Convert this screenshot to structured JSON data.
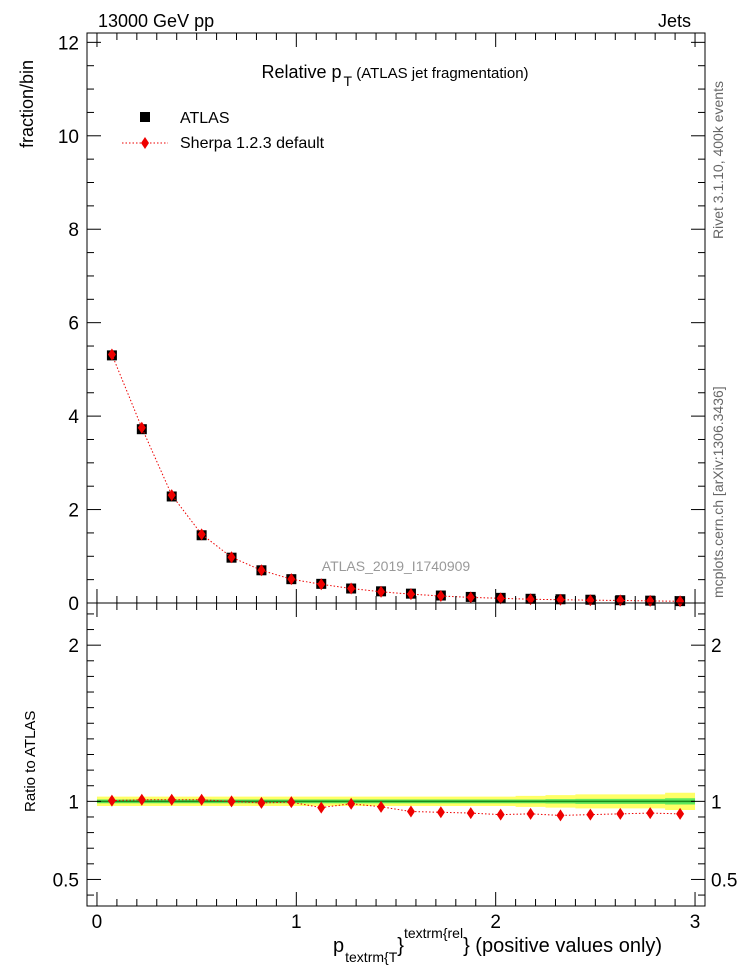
{
  "header": {
    "left": "13000 GeV pp",
    "right": "Jets"
  },
  "side_labels": {
    "rivet": "Rivet 3.1.10,  400k events",
    "mcplots": "mcplots.cern.ch [arXiv:1306.3436]"
  },
  "chart_data": [
    {
      "panel": "main",
      "type": "scatter",
      "title_main": "Relative p",
      "title_sub": "T",
      "title_rest": " (ATLAS jet fragmentation)",
      "ylabel": "fraction/bin",
      "watermark": "ATLAS_2019_I1740909",
      "xlim": [
        -0.05,
        3.05
      ],
      "ylim": [
        0,
        12.2
      ],
      "yticks": [
        0,
        2,
        4,
        6,
        8,
        10,
        12
      ],
      "ytick_labels": [
        "0",
        "2",
        "4",
        "6",
        "8",
        "10",
        "12"
      ],
      "legend": {
        "position": "top-left"
      },
      "series": [
        {
          "name": "ATLAS",
          "color": "#000000",
          "marker": "square",
          "x": [
            0.075,
            0.225,
            0.375,
            0.525,
            0.675,
            0.825,
            0.975,
            1.125,
            1.275,
            1.425,
            1.575,
            1.725,
            1.875,
            2.025,
            2.175,
            2.325,
            2.475,
            2.625,
            2.775,
            2.925
          ],
          "y": [
            5.3,
            3.72,
            2.28,
            1.45,
            0.97,
            0.7,
            0.51,
            0.41,
            0.31,
            0.25,
            0.2,
            0.16,
            0.13,
            0.11,
            0.09,
            0.08,
            0.07,
            0.06,
            0.05,
            0.04
          ]
        },
        {
          "name": "Sherpa 1.2.3 default",
          "color": "#ee0000",
          "marker": "diamond",
          "line": "dotted",
          "x": [
            0.075,
            0.225,
            0.375,
            0.525,
            0.675,
            0.825,
            0.975,
            1.125,
            1.275,
            1.425,
            1.575,
            1.725,
            1.875,
            2.025,
            2.175,
            2.325,
            2.475,
            2.625,
            2.775,
            2.925
          ],
          "y": [
            5.32,
            3.75,
            2.31,
            1.47,
            0.98,
            0.7,
            0.51,
            0.4,
            0.31,
            0.24,
            0.19,
            0.15,
            0.12,
            0.1,
            0.08,
            0.07,
            0.06,
            0.055,
            0.045,
            0.037
          ]
        }
      ]
    },
    {
      "panel": "ratio",
      "type": "scatter",
      "ylabel": "Ratio to ATLAS",
      "xlabel_main": "p",
      "xlabel_sub": "textrm{T",
      "xlabel_brace": "}",
      "xlabel_sup": "textrm{rel",
      "xlabel_rest": "} (positive values only)",
      "xlim": [
        -0.05,
        3.05
      ],
      "xticks": [
        0,
        1,
        2,
        3
      ],
      "xtick_labels": [
        "0",
        "1",
        "2",
        "3"
      ],
      "ylim": [
        0.33,
        2.27
      ],
      "yticks": [
        0.5,
        1,
        2
      ],
      "ytick_labels": [
        "0.5",
        "1",
        "2"
      ],
      "band": {
        "x": [
          0.0,
          0.15,
          0.3,
          0.45,
          0.6,
          0.75,
          0.9,
          1.05,
          1.2,
          1.35,
          1.5,
          1.65,
          1.8,
          1.95,
          2.1,
          2.25,
          2.4,
          2.55,
          2.7,
          2.85,
          3.0
        ],
        "inner_halfwidth": [
          0.012,
          0.012,
          0.012,
          0.012,
          0.012,
          0.012,
          0.012,
          0.012,
          0.012,
          0.012,
          0.012,
          0.012,
          0.012,
          0.012,
          0.012,
          0.014,
          0.016,
          0.016,
          0.016,
          0.02,
          0.02
        ],
        "outer_halfwidth": [
          0.03,
          0.03,
          0.03,
          0.03,
          0.03,
          0.03,
          0.03,
          0.03,
          0.03,
          0.03,
          0.03,
          0.03,
          0.03,
          0.03,
          0.035,
          0.04,
          0.045,
          0.045,
          0.045,
          0.055,
          0.055
        ],
        "inner_color": "#5ce85c",
        "outer_color": "#ffff66",
        "line_color": "#1a8a1a"
      },
      "series": [
        {
          "name": "Sherpa 1.2.3 default",
          "color": "#ee0000",
          "marker": "diamond",
          "line": "dotted",
          "x": [
            0.075,
            0.225,
            0.375,
            0.525,
            0.675,
            0.825,
            0.975,
            1.125,
            1.275,
            1.425,
            1.575,
            1.725,
            1.875,
            2.025,
            2.175,
            2.325,
            2.475,
            2.625,
            2.775,
            2.925
          ],
          "y": [
            1.005,
            1.01,
            1.01,
            1.01,
            1.0,
            0.99,
            0.995,
            0.96,
            0.985,
            0.965,
            0.935,
            0.93,
            0.925,
            0.915,
            0.92,
            0.91,
            0.915,
            0.92,
            0.925,
            0.92
          ],
          "err": [
            0.01,
            0.01,
            0.01,
            0.01,
            0.01,
            0.01,
            0.01,
            0.01,
            0.012,
            0.012,
            0.012,
            0.014,
            0.014,
            0.015,
            0.016,
            0.018,
            0.02,
            0.022,
            0.026,
            0.03
          ]
        }
      ]
    }
  ]
}
